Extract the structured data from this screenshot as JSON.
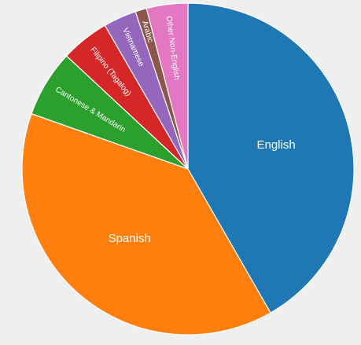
{
  "chart_data": {
    "type": "pie",
    "title": "",
    "start_angle_deg": 0,
    "direction": "clockwise",
    "legend": "none",
    "slices": [
      {
        "label": "English",
        "value": 41.5,
        "color": "#1f77b4"
      },
      {
        "label": "Spanish",
        "value": 38.5,
        "color": "#ff7f0e"
      },
      {
        "label": "Cantonese & Mandarin",
        "value": 6.5,
        "color": "#2ca02c"
      },
      {
        "label": "Filipino (Tagalog)",
        "value": 4.7,
        "color": "#d62728"
      },
      {
        "label": "Vietnamese",
        "value": 3.2,
        "color": "#9467bd"
      },
      {
        "label": "Arabic",
        "value": 1.1,
        "color": "#8c564b"
      },
      {
        "label": "Other Non-English",
        "value": 4.0,
        "color": "#e377c2"
      }
    ]
  }
}
